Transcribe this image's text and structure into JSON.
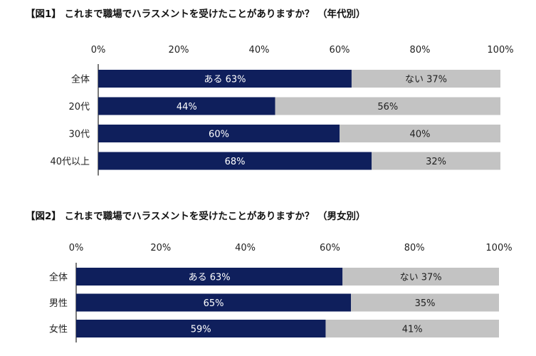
{
  "colors": {
    "yes": "#0f1f5c",
    "no": "#c3c3c3",
    "axis": "#222222"
  },
  "chart_data": [
    {
      "type": "bar",
      "orientation": "horizontal",
      "stacked": true,
      "title": "【図1】 これまで職場でハラスメントを受けたことがありますか？ （年代別）",
      "categories": [
        "全体",
        "20代",
        "30代",
        "40代以上"
      ],
      "xlim": [
        0,
        100
      ],
      "x_ticks": [
        "0%",
        "20%",
        "40%",
        "60%",
        "80%",
        "100%"
      ],
      "series": [
        {
          "name": "ある",
          "values": [
            63,
            44,
            60,
            68
          ]
        },
        {
          "name": "ない",
          "values": [
            37,
            56,
            40,
            32
          ]
        }
      ],
      "bar_labels": [
        [
          "ある 63%",
          "44%",
          "60%",
          "68%"
        ],
        [
          "ない 37%",
          "56%",
          "40%",
          "32%"
        ]
      ]
    },
    {
      "type": "bar",
      "orientation": "horizontal",
      "stacked": true,
      "title": "【図2】 これまで職場でハラスメントを受けたことがありますか？ （男女別）",
      "categories": [
        "全体",
        "男性",
        "女性"
      ],
      "xlim": [
        0,
        100
      ],
      "x_ticks": [
        "0%",
        "20%",
        "40%",
        "60%",
        "80%",
        "100%"
      ],
      "series": [
        {
          "name": "ある",
          "values": [
            63,
            65,
            59
          ]
        },
        {
          "name": "ない",
          "values": [
            37,
            35,
            41
          ]
        }
      ],
      "bar_labels": [
        [
          "ある 63%",
          "65%",
          "59%"
        ],
        [
          "ない 37%",
          "35%",
          "41%"
        ]
      ]
    }
  ]
}
